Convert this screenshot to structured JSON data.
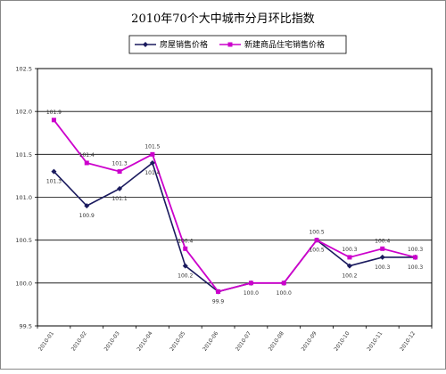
{
  "chart_data": {
    "type": "line",
    "title": "2010年70个大中城市分月环比指数",
    "categories": [
      "2010-01",
      "2010-02",
      "2010-03",
      "2010-04",
      "2010-05",
      "2010-06",
      "2010-07",
      "2010-08",
      "2010-09",
      "2010-10",
      "2010-11",
      "2010-12"
    ],
    "series": [
      {
        "name": "房屋销售价格",
        "color": "#1a1a5e",
        "marker": "diamond",
        "values": [
          101.3,
          100.9,
          101.1,
          101.4,
          100.2,
          99.9,
          100.0,
          100.0,
          100.5,
          100.2,
          100.3,
          100.3
        ],
        "labels": [
          "101.3",
          "100.9",
          "101.1",
          "101.4",
          "100.2",
          "99.9",
          "100.0",
          "100.0",
          "100.5",
          "100.2",
          "100.3",
          "100.3"
        ]
      },
      {
        "name": "新建商品住宅销售价格",
        "color": "#cc00cc",
        "marker": "square",
        "values": [
          101.9,
          101.4,
          101.3,
          101.5,
          100.4,
          99.9,
          100.0,
          100.0,
          100.5,
          100.3,
          100.4,
          100.3
        ],
        "labels": [
          "101.9",
          "101.4",
          "101.3",
          "101.5",
          "100.4",
          "",
          "",
          "",
          "100.5",
          "100.3",
          "100.4",
          "100.3"
        ]
      }
    ],
    "ylim": [
      99.5,
      102.5
    ],
    "yticks": [
      "99.5",
      "100.0",
      "100.5",
      "101.0",
      "101.5",
      "102.0",
      "102.5"
    ],
    "grid": true,
    "legend": "top-center"
  }
}
